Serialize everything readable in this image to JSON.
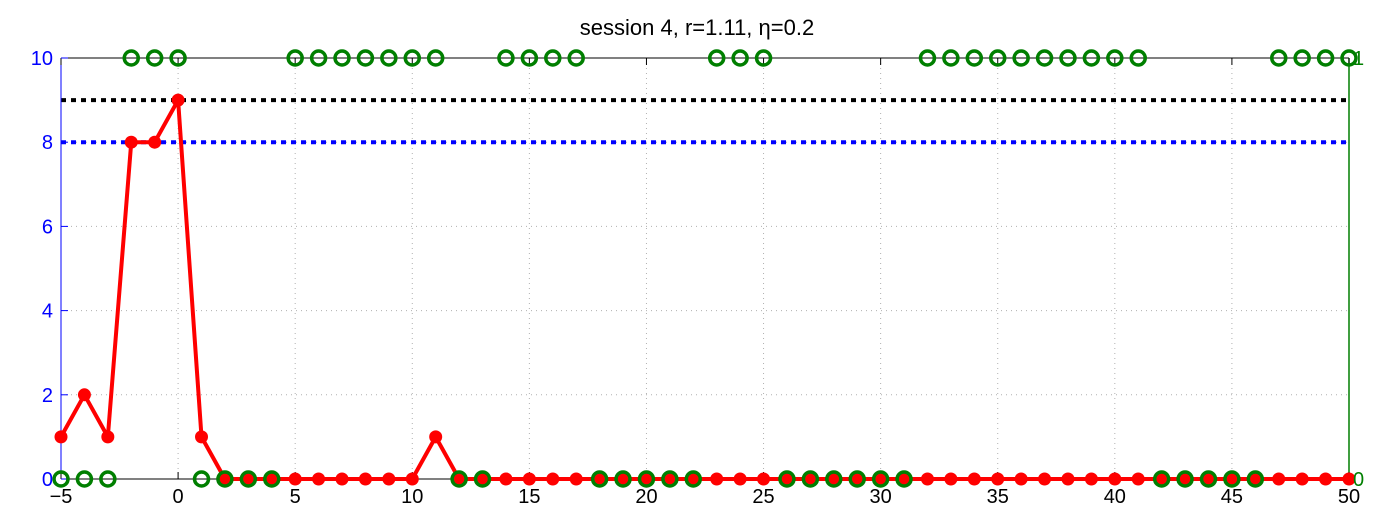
{
  "chart_data": {
    "type": "line",
    "title": "session 4, r=1.11, η=0.2",
    "xlabel": "",
    "ylabel": "",
    "xlim": [
      -5,
      50
    ],
    "ylim": [
      0,
      10
    ],
    "ylim_right": [
      0,
      1
    ],
    "grid": true,
    "x_ticks": [
      "−5",
      "0",
      "5",
      "10",
      "15",
      "20",
      "25",
      "30",
      "35",
      "40",
      "45",
      "50"
    ],
    "y_ticks_left": [
      "0",
      "2",
      "4",
      "6",
      "8",
      "10"
    ],
    "y_ticks_right": [
      "0",
      "1"
    ],
    "colors": {
      "axis_left": "#0000ff",
      "axis_right": "#007f00",
      "series_main": "#ff0000",
      "series_binary": "#007f00",
      "ref_black": "#000000",
      "ref_blue": "#0000ff"
    },
    "reference_lines": [
      {
        "y": 9,
        "color": "#000000",
        "style": "dotted"
      },
      {
        "y": 8,
        "color": "#0000ff",
        "style": "dotted"
      }
    ],
    "series": [
      {
        "axis": "left",
        "marker": "filled-circle",
        "x": [
          -5,
          -4,
          -3,
          -2,
          -1,
          0,
          1,
          2,
          3,
          4,
          5,
          6,
          7,
          8,
          9,
          10,
          11,
          12,
          13,
          14,
          15,
          16,
          17,
          18,
          19,
          20,
          21,
          22,
          23,
          24,
          25,
          26,
          27,
          28,
          29,
          30,
          31,
          32,
          33,
          34,
          35,
          36,
          37,
          38,
          39,
          40,
          41,
          42,
          43,
          44,
          45,
          46,
          47,
          48,
          49,
          50
        ],
        "values": [
          1,
          2,
          1,
          8,
          8,
          9,
          1,
          0,
          0,
          0,
          0,
          0,
          0,
          0,
          0,
          0,
          1,
          0,
          0,
          0,
          0,
          0,
          0,
          0,
          0,
          0,
          0,
          0,
          0,
          0,
          0,
          0,
          0,
          0,
          0,
          0,
          0,
          0,
          0,
          0,
          0,
          0,
          0,
          0,
          0,
          0,
          0,
          0,
          0,
          0,
          0,
          0,
          0,
          0,
          0,
          0
        ]
      },
      {
        "axis": "right",
        "marker": "open-circle",
        "x": [
          -5,
          -4,
          -3,
          -2,
          -1,
          0,
          1,
          2,
          3,
          4,
          5,
          6,
          7,
          8,
          9,
          10,
          11,
          12,
          13,
          14,
          15,
          16,
          17,
          18,
          19,
          20,
          21,
          22,
          23,
          24,
          25,
          26,
          27,
          28,
          29,
          30,
          31,
          32,
          33,
          34,
          35,
          36,
          37,
          38,
          39,
          40,
          41,
          42,
          43,
          44,
          45,
          46,
          47,
          48,
          49,
          50
        ],
        "values": [
          0,
          0,
          0,
          1,
          1,
          1,
          0,
          0,
          0,
          0,
          1,
          1,
          1,
          1,
          1,
          1,
          1,
          0,
          0,
          1,
          1,
          1,
          1,
          0,
          0,
          0,
          0,
          0,
          1,
          1,
          1,
          0,
          0,
          0,
          0,
          0,
          0,
          1,
          1,
          1,
          1,
          1,
          1,
          1,
          1,
          1,
          1,
          0,
          0,
          0,
          0,
          0,
          1,
          1,
          1,
          1
        ]
      }
    ]
  }
}
